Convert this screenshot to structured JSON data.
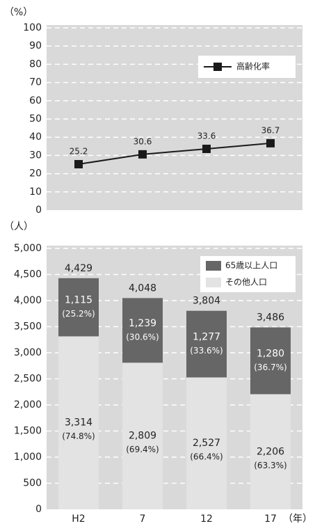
{
  "chart_data": [
    {
      "type": "line",
      "ylabel": "（%）",
      "series": [
        {
          "name": "高齢化率",
          "color": "#1a1a1a",
          "values": [
            25.2,
            30.6,
            33.6,
            36.7
          ]
        }
      ],
      "ylim": [
        0,
        100
      ],
      "yticks": [
        0,
        10,
        20,
        30,
        40,
        50,
        60,
        70,
        80,
        90,
        100
      ],
      "grid": true,
      "legend": "upper right"
    },
    {
      "type": "bar",
      "ylabel": "（人）",
      "xlabel": "（年）",
      "stacked": true,
      "categories": [
        "H2",
        "7",
        "12",
        "17"
      ],
      "series": [
        {
          "name": "その他人口",
          "color": "#e3e3e3",
          "values": [
            3314,
            2809,
            2527,
            2206
          ],
          "value_labels": [
            "3,314",
            "2,809",
            "2,527",
            "2,206"
          ],
          "percent_labels": [
            "(74.8%)",
            "(69.4%)",
            "(66.4%)",
            "(63.3%)"
          ]
        },
        {
          "name": "65歳以上人口",
          "color": "#666666",
          "values": [
            1115,
            1239,
            1277,
            1280
          ],
          "value_labels": [
            "1,115",
            "1,239",
            "1,277",
            "1,280"
          ],
          "percent_labels": [
            "(25.2%)",
            "(30.6%)",
            "(33.6%)",
            "(36.7%)"
          ]
        }
      ],
      "totals": [
        4429,
        4048,
        3804,
        3486
      ],
      "total_labels": [
        "4,429",
        "4,048",
        "3,804",
        "3,486"
      ],
      "ylim": [
        0,
        5000
      ],
      "yticks": [
        0,
        500,
        {
          "value": 1000,
          "label": "1,000"
        },
        {
          "value": 1500,
          "label": "1,500"
        },
        {
          "value": 2000,
          "label": "2,000"
        },
        {
          "value": 2500,
          "label": "2,500"
        },
        {
          "value": 3000,
          "label": "3,000"
        },
        {
          "value": 3500,
          "label": "3,500"
        },
        {
          "value": 4000,
          "label": "4,000"
        },
        {
          "value": 4500,
          "label": "4,500"
        },
        {
          "value": 5000,
          "label": "5,000"
        }
      ],
      "grid": true,
      "legend": "upper right"
    }
  ]
}
